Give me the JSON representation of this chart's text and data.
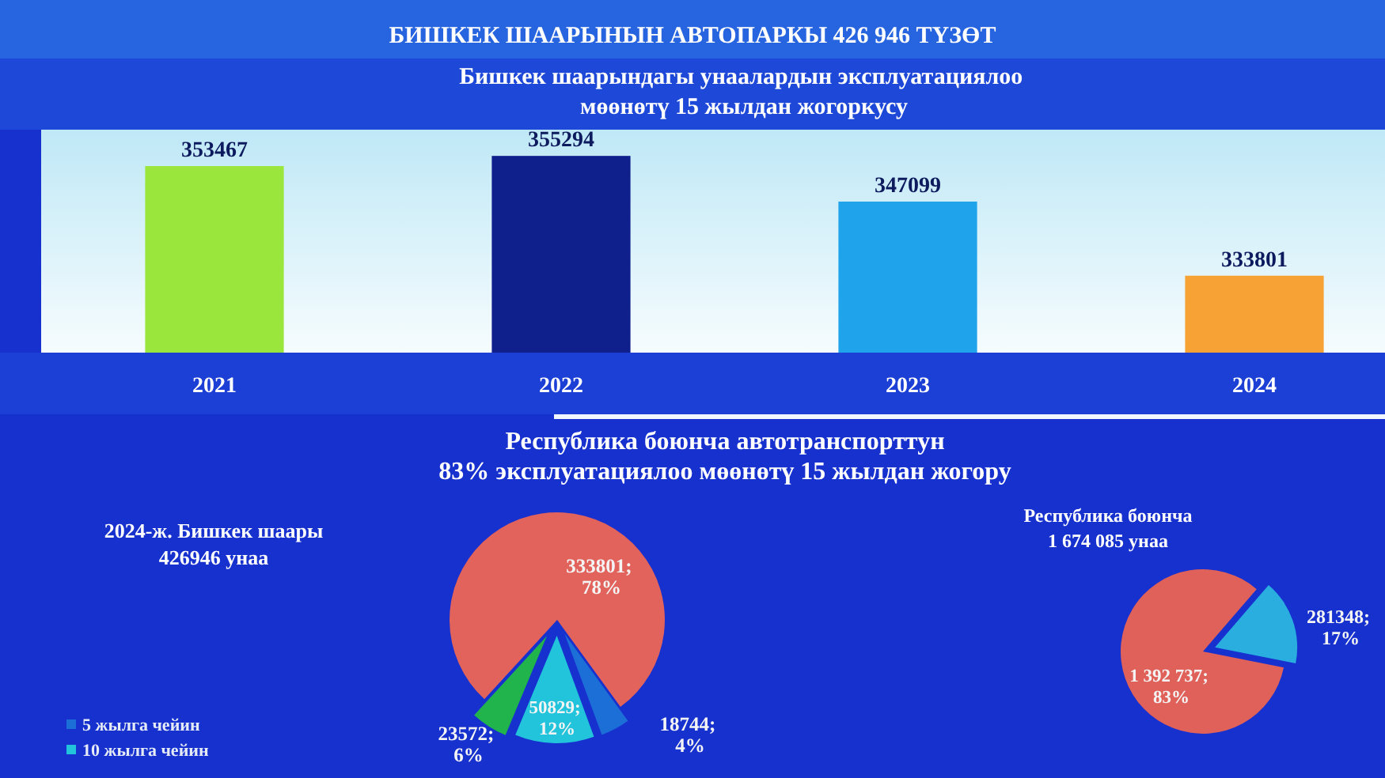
{
  "chart_data": [
    {
      "type": "bar",
      "title": "БИШКЕК ШААРЫНЫН АВТОПАРКЫ 426 946 ТҮЗӨТ",
      "subtitle": "Бишкек шаарындагы унаалардын эксплуатациялоо\nмөөнөтү 15 жылдан жогоркусу",
      "categories": [
        "2021",
        "2022",
        "2023",
        "2024"
      ],
      "values": [
        353467,
        355294,
        347099,
        333801
      ],
      "colors": [
        "#9be63c",
        "#0f1f8c",
        "#1fa3ea",
        "#f7a234"
      ],
      "ylim": [
        320000,
        360000
      ],
      "tick_labels": "x",
      "data_labels": true
    },
    {
      "type": "pie",
      "title": "2024-ж. Бишкек шаары",
      "subtitle": "426946 унаа",
      "categories": [
        "5 жылга чейин",
        "10 жылга чейин",
        null,
        null
      ],
      "values": [
        18744,
        50829,
        23572,
        333801
      ],
      "colors": [
        "#1c6fd6",
        "#22c4dc",
        "#21b34c",
        "#e2625c"
      ],
      "value_labels": [
        "18744;\n4%",
        "50829;\n12%",
        "23572;\n6%",
        "333801;\n78%"
      ],
      "legend": "bottom left"
    },
    {
      "type": "pie",
      "title": "Республика боюнча",
      "subtitle": "1 674 085 унаа",
      "categories": [
        null,
        null
      ],
      "values": [
        1392737,
        281348
      ],
      "colors": [
        "#e0605a",
        "#2aaee0"
      ],
      "value_labels": [
        "1 392 737;\n83%",
        "281348;\n17%"
      ],
      "annotations": [
        "Республика боюнча автотранспорттун",
        "83% эксплуатациялоо мөөнөтү 15 жылдан жогору"
      ]
    }
  ]
}
